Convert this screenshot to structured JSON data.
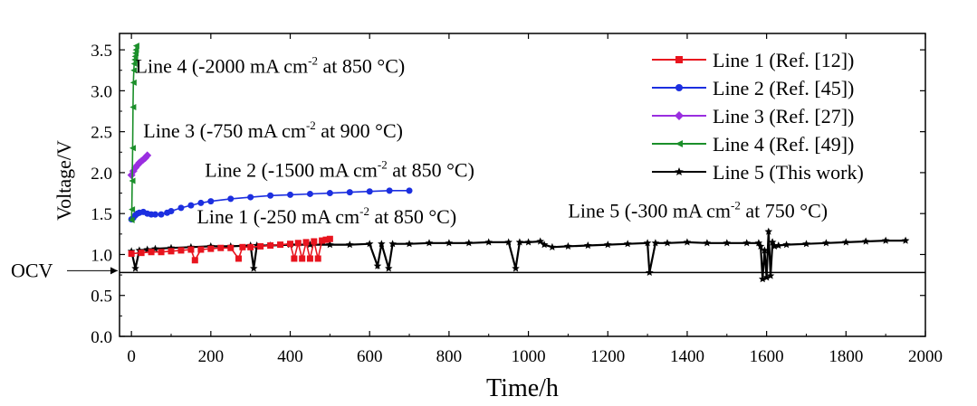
{
  "chart_data": {
    "type": "line",
    "xlabel": "Time/h",
    "ylabel": "Voltage/V",
    "xlim": [
      -30,
      2000
    ],
    "ylim": [
      0,
      3.7
    ],
    "x_ticks": [
      0,
      200,
      400,
      600,
      800,
      1000,
      1200,
      1400,
      1600,
      1800,
      2000
    ],
    "y_ticks": [
      0.0,
      0.5,
      1.0,
      1.5,
      2.0,
      2.5,
      3.0,
      3.5
    ],
    "x_tick_labels": [
      "0",
      "200",
      "400",
      "600",
      "800",
      "1000",
      "1200",
      "1400",
      "1600",
      "1800",
      "2000"
    ],
    "y_tick_labels": [
      "0.0",
      "0.5",
      "1.0",
      "1.5",
      "2.0",
      "2.5",
      "3.0",
      "3.5"
    ],
    "ocv": {
      "label": "OCV",
      "value": 0.78
    },
    "legend_position": "top-right",
    "series": [
      {
        "name": "Line 1 (Ref. [12])",
        "color": "#e8141e",
        "marker": "square",
        "x": [
          0,
          25,
          50,
          75,
          100,
          125,
          150,
          160,
          175,
          200,
          225,
          250,
          270,
          280,
          300,
          325,
          350,
          375,
          400,
          410,
          420,
          430,
          440,
          450,
          460,
          470,
          480,
          490,
          500
        ],
        "y": [
          1.01,
          1.02,
          1.03,
          1.03,
          1.04,
          1.05,
          1.06,
          0.93,
          1.06,
          1.07,
          1.08,
          1.08,
          0.95,
          1.09,
          1.09,
          1.1,
          1.11,
          1.12,
          1.13,
          0.95,
          1.14,
          0.95,
          1.15,
          0.95,
          1.16,
          0.95,
          1.17,
          1.18,
          1.19
        ]
      },
      {
        "name": "Line 2 (Ref. [45])",
        "color": "#1c2fe0",
        "marker": "circle",
        "x": [
          0,
          5,
          10,
          15,
          20,
          30,
          40,
          50,
          60,
          75,
          90,
          100,
          125,
          150,
          175,
          200,
          250,
          300,
          350,
          400,
          450,
          500,
          550,
          600,
          650,
          700
        ],
        "y": [
          1.43,
          1.45,
          1.48,
          1.5,
          1.51,
          1.52,
          1.5,
          1.49,
          1.49,
          1.49,
          1.51,
          1.53,
          1.57,
          1.6,
          1.63,
          1.65,
          1.68,
          1.7,
          1.72,
          1.73,
          1.74,
          1.75,
          1.76,
          1.77,
          1.78,
          1.78
        ]
      },
      {
        "name": "Line 3 (Ref. [27])",
        "color": "#9a2ee0",
        "marker": "diamond",
        "x": [
          0,
          5,
          10,
          15,
          20,
          25,
          30,
          35,
          40
        ],
        "y": [
          1.97,
          2.02,
          2.06,
          2.09,
          2.12,
          2.14,
          2.16,
          2.18,
          2.21
        ]
      },
      {
        "name": "Line 4 (Ref. [49])",
        "color": "#1b8f2a",
        "marker": "triangle-left",
        "x": [
          0,
          1,
          2,
          3,
          4,
          5,
          6,
          7,
          8,
          9,
          10,
          11,
          12
        ],
        "y": [
          1.42,
          1.55,
          1.9,
          2.3,
          2.8,
          3.1,
          3.25,
          3.33,
          3.38,
          3.42,
          3.46,
          3.5,
          3.55
        ]
      },
      {
        "name": "Line 5 (This work)",
        "color": "#000000",
        "marker": "star",
        "x": [
          0,
          10,
          20,
          40,
          60,
          100,
          150,
          200,
          250,
          300,
          308,
          316,
          350,
          400,
          450,
          500,
          550,
          600,
          620,
          630,
          648,
          658,
          700,
          750,
          800,
          850,
          900,
          950,
          968,
          978,
          1000,
          1030,
          1040,
          1060,
          1100,
          1150,
          1200,
          1250,
          1300,
          1305,
          1320,
          1350,
          1400,
          1450,
          1500,
          1550,
          1580,
          1585,
          1590,
          1595,
          1600,
          1605,
          1610,
          1615,
          1620,
          1630,
          1650,
          1700,
          1750,
          1800,
          1850,
          1900,
          1950
        ],
        "y": [
          1.04,
          0.83,
          1.05,
          1.06,
          1.07,
          1.08,
          1.09,
          1.1,
          1.1,
          1.11,
          0.83,
          1.11,
          1.11,
          1.12,
          1.12,
          1.12,
          1.12,
          1.13,
          0.86,
          1.13,
          0.83,
          1.13,
          1.13,
          1.14,
          1.14,
          1.14,
          1.15,
          1.15,
          0.83,
          1.15,
          1.15,
          1.16,
          1.12,
          1.09,
          1.1,
          1.11,
          1.12,
          1.13,
          1.14,
          0.78,
          1.14,
          1.14,
          1.15,
          1.14,
          1.14,
          1.14,
          1.14,
          1.1,
          0.7,
          1.05,
          0.72,
          1.28,
          0.74,
          1.15,
          1.1,
          1.11,
          1.12,
          1.13,
          1.14,
          1.15,
          1.16,
          1.17,
          1.17
        ]
      }
    ],
    "annotations": [
      {
        "id": "line4",
        "pre": "Line 4 (-2000 mA cm",
        "sup": "-2",
        "post": " at 850 °C)",
        "x": 10,
        "y": 3.22
      },
      {
        "id": "line3",
        "pre": "Line 3 (-750 mA cm",
        "sup": "-2",
        "post": " at 900 °C)",
        "x": 30,
        "y": 2.43
      },
      {
        "id": "line2",
        "pre": "Line 2 (-1500 mA cm",
        "sup": "-2",
        "post": "  at 850 °C)",
        "x": 185,
        "y": 1.95
      },
      {
        "id": "line1",
        "pre": "Line 1 (-250 mA cm",
        "sup": "-2",
        "post": " at 850 °C)",
        "x": 165,
        "y": 1.38
      },
      {
        "id": "line5",
        "pre": "Line 5 (-300 mA cm",
        "sup": "-2",
        "post": " at 750 °C)",
        "x": 1100,
        "y": 1.45
      }
    ]
  }
}
